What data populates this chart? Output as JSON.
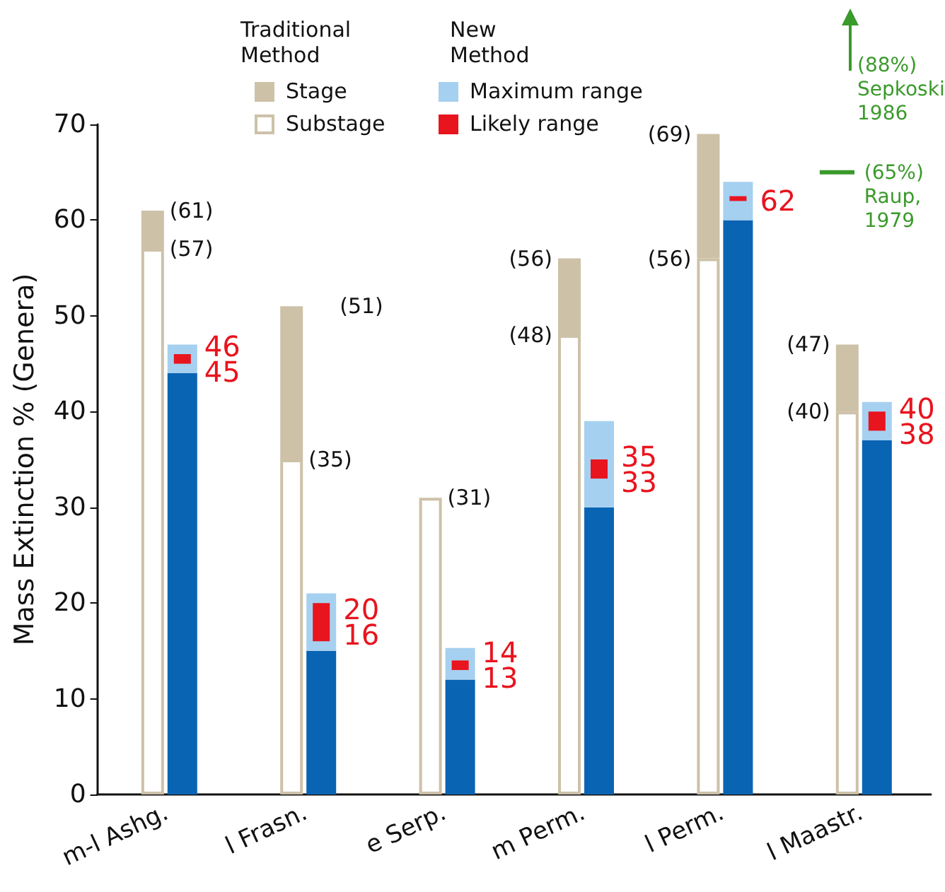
{
  "chart_data": {
    "type": "bar",
    "ylabel": "Mass Extinction % (Genera)",
    "categories": [
      "m-l Ashg.",
      "l Frasn.",
      "e Serp.",
      "m Perm.",
      "l Perm.",
      "l Maastr."
    ],
    "series": [
      {
        "name": "Substage",
        "color": "#ffffff",
        "base": [
          0,
          0,
          0,
          0,
          0,
          0
        ],
        "values": [
          57,
          35,
          31,
          48,
          56,
          40
        ]
      },
      {
        "name": "Stage",
        "color": "#cdc1a8",
        "base": [
          57,
          35,
          null,
          48,
          56,
          40
        ],
        "values": [
          4,
          16,
          null,
          8,
          13,
          7
        ]
      },
      {
        "color": "#0a64b4",
        "base": [
          0,
          0,
          0,
          0,
          0,
          0
        ],
        "values": [
          44,
          15,
          12,
          30,
          60,
          37
        ]
      },
      {
        "name": "Maximum range",
        "color": "#a6d0ef",
        "base": [
          44,
          15,
          12,
          30,
          60,
          37
        ],
        "values": [
          3,
          6,
          3.3,
          9,
          4,
          4
        ]
      },
      {
        "name": "Likely range",
        "color": "#e8141e",
        "base": [
          45,
          16,
          13,
          33,
          62,
          38
        ],
        "values": [
          1,
          4,
          1,
          2,
          0.5,
          2
        ]
      }
    ],
    "ylim": [
      0,
      70
    ],
    "yticks": [
      0,
      10,
      20,
      30,
      40,
      50,
      60,
      70
    ],
    "grid": false,
    "legend": "top",
    "annotations": [
      "Traditional Method",
      "New Method",
      "(88%)\nSepkoski,\n1986",
      {
        "text": "(61)",
        "x": "m-l Ashg.",
        "y": 61
      },
      {
        "text": "(57)",
        "x": "m-l Ashg.",
        "y": 57
      },
      {
        "text": "(51)",
        "x": "l Frasn.",
        "y": 51
      },
      {
        "text": "(35)",
        "x": "l Frasn.",
        "y": 35
      },
      {
        "text": "(31)",
        "x": "e Serp.",
        "y": 31
      },
      {
        "text": "(56)",
        "x": "m Perm.",
        "y": 56
      },
      {
        "text": "(48)",
        "x": "m Perm.",
        "y": 48
      },
      {
        "text": "(69)",
        "x": "l Perm.",
        "y": 69
      },
      {
        "text": "(56)",
        "x": "l Perm.",
        "y": 56
      },
      {
        "text": "(47)",
        "x": "l Maastr.",
        "y": 47
      },
      {
        "text": "(40)",
        "x": "l Maastr.",
        "y": 40
      },
      {
        "text": "46",
        "x": "m-l Ashg.",
        "y": 46
      },
      {
        "text": "45",
        "x": "m-l Ashg.",
        "y": 45
      },
      {
        "text": "20",
        "x": "l Frasn.",
        "y": 20
      },
      {
        "text": "16",
        "x": "l Frasn.",
        "y": 16
      },
      {
        "text": "14",
        "x": "e Serp.",
        "y": 14
      },
      {
        "text": "13",
        "x": "e Serp.",
        "y": 13
      },
      {
        "text": "35",
        "x": "m Perm.",
        "y": 35
      },
      {
        "text": "33",
        "x": "m Perm.",
        "y": 33
      },
      {
        "text": "62",
        "x": "l Perm.",
        "y": 62
      },
      {
        "text": "40",
        "x": "l Maastr.",
        "y": 40
      },
      {
        "text": "38",
        "x": "l Maastr.",
        "y": 38
      }
    ],
    "ref_lines": [
      {
        "axis": "y",
        "value": 65,
        "label": "(65%)\nRaup,\n1979",
        "color": "#3a9a2a"
      }
    ]
  }
}
